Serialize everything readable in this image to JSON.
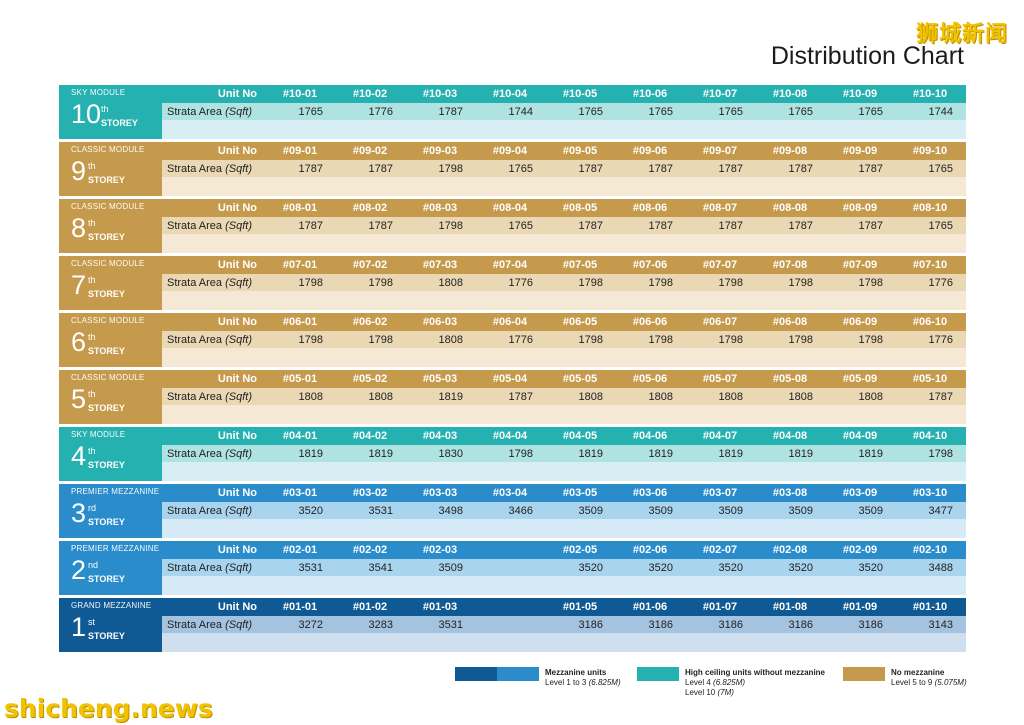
{
  "watermark_top": "狮城新闻",
  "title": "Distribution Chart",
  "unit_no_label": "Unit No",
  "area_label_main": "Strata Area",
  "area_label_unit": "(Sqft)",
  "storey_word": "STOREY",
  "storeys": [
    {
      "module": "SKY MODULE",
      "num": "10",
      "sup": "th",
      "theme": "sky",
      "units": [
        "#10-01",
        "#10-02",
        "#10-03",
        "#10-04",
        "#10-05",
        "#10-06",
        "#10-07",
        "#10-08",
        "#10-09",
        "#10-10"
      ],
      "areas": [
        "1765",
        "1776",
        "1787",
        "1744",
        "1765",
        "1765",
        "1765",
        "1765",
        "1765",
        "1744"
      ]
    },
    {
      "module": "CLASSIC MODULE",
      "num": "9",
      "sup": "th",
      "theme": "classic",
      "units": [
        "#09-01",
        "#09-02",
        "#09-03",
        "#09-04",
        "#09-05",
        "#09-06",
        "#09-07",
        "#09-08",
        "#09-09",
        "#09-10"
      ],
      "areas": [
        "1787",
        "1787",
        "1798",
        "1765",
        "1787",
        "1787",
        "1787",
        "1787",
        "1787",
        "1765"
      ]
    },
    {
      "module": "CLASSIC MODULE",
      "num": "8",
      "sup": "th",
      "theme": "classic",
      "units": [
        "#08-01",
        "#08-02",
        "#08-03",
        "#08-04",
        "#08-05",
        "#08-06",
        "#08-07",
        "#08-08",
        "#08-09",
        "#08-10"
      ],
      "areas": [
        "1787",
        "1787",
        "1798",
        "1765",
        "1787",
        "1787",
        "1787",
        "1787",
        "1787",
        "1765"
      ]
    },
    {
      "module": "CLASSIC MODULE",
      "num": "7",
      "sup": "th",
      "theme": "classic",
      "units": [
        "#07-01",
        "#07-02",
        "#07-03",
        "#07-04",
        "#07-05",
        "#07-06",
        "#07-07",
        "#07-08",
        "#07-09",
        "#07-10"
      ],
      "areas": [
        "1798",
        "1798",
        "1808",
        "1776",
        "1798",
        "1798",
        "1798",
        "1798",
        "1798",
        "1776"
      ]
    },
    {
      "module": "CLASSIC MODULE",
      "num": "6",
      "sup": "th",
      "theme": "classic",
      "units": [
        "#06-01",
        "#06-02",
        "#06-03",
        "#06-04",
        "#06-05",
        "#06-06",
        "#06-07",
        "#06-08",
        "#06-09",
        "#06-10"
      ],
      "areas": [
        "1798",
        "1798",
        "1808",
        "1776",
        "1798",
        "1798",
        "1798",
        "1798",
        "1798",
        "1776"
      ]
    },
    {
      "module": "CLASSIC MODULE",
      "num": "5",
      "sup": "th",
      "theme": "classic",
      "units": [
        "#05-01",
        "#05-02",
        "#05-03",
        "#05-04",
        "#05-05",
        "#05-06",
        "#05-07",
        "#05-08",
        "#05-09",
        "#05-10"
      ],
      "areas": [
        "1808",
        "1808",
        "1819",
        "1787",
        "1808",
        "1808",
        "1808",
        "1808",
        "1808",
        "1787"
      ]
    },
    {
      "module": "SKY MODULE",
      "num": "4",
      "sup": "th",
      "theme": "sky",
      "units": [
        "#04-01",
        "#04-02",
        "#04-03",
        "#04-04",
        "#04-05",
        "#04-06",
        "#04-07",
        "#04-08",
        "#04-09",
        "#04-10"
      ],
      "areas": [
        "1819",
        "1819",
        "1830",
        "1798",
        "1819",
        "1819",
        "1819",
        "1819",
        "1819",
        "1798"
      ]
    },
    {
      "module": "PREMIER MEZZANINE",
      "num": "3",
      "sup": "rd",
      "theme": "premier",
      "units": [
        "#03-01",
        "#03-02",
        "#03-03",
        "#03-04",
        "#03-05",
        "#03-06",
        "#03-07",
        "#03-08",
        "#03-09",
        "#03-10"
      ],
      "areas": [
        "3520",
        "3531",
        "3498",
        "3466",
        "3509",
        "3509",
        "3509",
        "3509",
        "3509",
        "3477"
      ]
    },
    {
      "module": "PREMIER MEZZANINE",
      "num": "2",
      "sup": "nd",
      "theme": "premier",
      "units": [
        "#02-01",
        "#02-02",
        "#02-03",
        "",
        "#02-05",
        "#02-06",
        "#02-07",
        "#02-08",
        "#02-09",
        "#02-10"
      ],
      "areas": [
        "3531",
        "3541",
        "3509",
        "",
        "3520",
        "3520",
        "3520",
        "3520",
        "3520",
        "3488"
      ]
    },
    {
      "module": "GRAND MEZZANINE",
      "num": "1",
      "sup": "st",
      "theme": "grand",
      "units": [
        "#01-01",
        "#01-02",
        "#01-03",
        "",
        "#01-05",
        "#01-06",
        "#01-07",
        "#01-08",
        "#01-09",
        "#01-10"
      ],
      "areas": [
        "3272",
        "3283",
        "3531",
        "",
        "3186",
        "3186",
        "3186",
        "3186",
        "3186",
        "3143"
      ]
    }
  ],
  "legend": {
    "mezzanine": {
      "title": "Mezzanine units",
      "line1": "Level 1 to 3",
      "line1_val": "(6.825M)",
      "colors": [
        "#0f5a94",
        "#2a8ccb"
      ]
    },
    "high_ceiling": {
      "title": "High ceiling units without mezzanine",
      "line1": "Level 4",
      "line1_val": "(6.825M)",
      "line2": "Level 10",
      "line2_val": "(7M)",
      "color": "#26b1b1"
    },
    "no_mezz": {
      "title": "No mezzanine",
      "line1": "Level 5 to 9",
      "line1_val": "(5.075M)",
      "color": "#c69a4c"
    }
  },
  "watermark_bottom": "shicheng.news"
}
